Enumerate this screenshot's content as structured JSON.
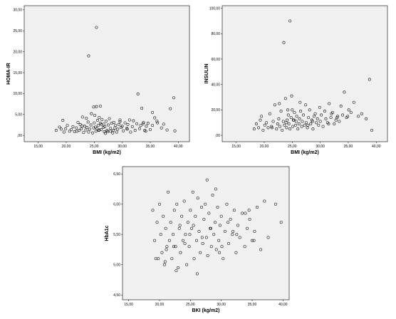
{
  "chart_data": [
    {
      "type": "scatter",
      "xlabel": "BMI (kg/m2)",
      "ylabel": "HOMA-IR",
      "xlim": [
        12.5,
        42
      ],
      "ylim": [
        -1.5,
        31
      ],
      "xticks": [
        "15,00",
        "20,00",
        "25,00",
        "30,00",
        "35,00",
        "40,00"
      ],
      "yticks": [
        ",00",
        "5,00",
        "10,00",
        "15,00",
        "20,00",
        "25,00",
        "30,00"
      ],
      "x": [
        18.2,
        18.8,
        19.1,
        19.4,
        19.6,
        19.9,
        20.2,
        20.6,
        20.9,
        21.2,
        21.5,
        21.8,
        22.1,
        22.3,
        22.5,
        22.7,
        22.9,
        23.1,
        23.3,
        23.5,
        23.7,
        23.9,
        24.0,
        24.2,
        24.4,
        24.5,
        24.7,
        24.9,
        25.0,
        25.1,
        25.2,
        25.3,
        25.4,
        25.5,
        25.6,
        25.7,
        25.8,
        25.9,
        26.1,
        26.2,
        26.4,
        26.6,
        26.7,
        26.8,
        26.9,
        27.1,
        27.3,
        27.4,
        27.5,
        27.7,
        27.9,
        28.1,
        28.4,
        28.5,
        28.7,
        28.8,
        29.0,
        29.2,
        29.4,
        29.6,
        29.8,
        30.0,
        30.2,
        30.5,
        30.8,
        31.0,
        31.3,
        31.5,
        31.8,
        32.0,
        32.3,
        32.6,
        32.8,
        33.1,
        33.3,
        33.5,
        33.8,
        34.0,
        34.3,
        34.6,
        35.0,
        35.4,
        35.8,
        36.3,
        37.0,
        37.4,
        38.0,
        38.6,
        39.2,
        39.4,
        24.0,
        25.4,
        26.1,
        27.0,
        27.9,
        30.9,
        33.7,
        34.2,
        22.8,
        36.2,
        23.6,
        24.9,
        25.9,
        26.3,
        28.3,
        21.9,
        29.6,
        35.4
      ],
      "y": [
        1.2,
        2.0,
        1.5,
        3.6,
        0.8,
        1.6,
        2.4,
        1.0,
        1.4,
        2.1,
        0.9,
        1.8,
        3.1,
        1.2,
        2.6,
        1.6,
        4.4,
        0.7,
        2.2,
        1.3,
        1.9,
        3.2,
        0.8,
        1.5,
        2.5,
        5.2,
        0.6,
        1.8,
        3.0,
        4.8,
        2.0,
        1.0,
        6.9,
        1.6,
        3.6,
        2.4,
        1.2,
        4.3,
        2.9,
        1.4,
        3.8,
        1.9,
        2.7,
        0.9,
        2.1,
        3.4,
        1.2,
        0.9,
        2.5,
        4.0,
        1.7,
        2.9,
        1.2,
        3.1,
        1.8,
        2.4,
        0.8,
        1.5,
        2.6,
        3.3,
        1.9,
        2.2,
        1.1,
        3.0,
        1.7,
        2.6,
        3.7,
        0.8,
        2.1,
        3.5,
        1.2,
        2.8,
        9.9,
        1.6,
        2.4,
        6.5,
        3.1,
        1.2,
        2.2,
        2.9,
        1.4,
        2.4,
        4.2,
        3.0,
        1.8,
        2.7,
        1.3,
        6.4,
        9.0,
        1.1,
        19.0,
        25.8,
        7.0,
        0.5,
        1.0,
        1.5,
        2.8,
        1.0,
        2.3,
        3.4,
        4.1,
        6.8,
        1.3,
        2.6,
        0.6,
        1.0,
        3.7,
        5.5
      ]
    },
    {
      "type": "scatter",
      "xlabel": "BMI (kg/m2)",
      "ylabel": "INSULIN",
      "xlim": [
        12.5,
        42
      ],
      "ylim": [
        -5,
        102
      ],
      "xticks": [
        "15,00",
        "20,00",
        "25,00",
        "30,00",
        "35,00",
        "40,00"
      ],
      "yticks": [
        ",00",
        "20,00",
        "40,00",
        "60,00",
        "80,00",
        "100,00"
      ],
      "x": [
        18.2,
        18.6,
        19.0,
        19.3,
        19.5,
        19.8,
        20.1,
        20.4,
        20.7,
        21.0,
        21.3,
        21.6,
        21.9,
        22.2,
        22.4,
        22.6,
        22.8,
        23.0,
        23.2,
        23.4,
        23.6,
        23.8,
        24.0,
        24.1,
        24.3,
        24.4,
        24.6,
        24.8,
        24.9,
        25.0,
        25.1,
        25.3,
        25.4,
        25.6,
        25.7,
        25.8,
        26.0,
        26.2,
        26.3,
        26.5,
        26.7,
        26.8,
        27.0,
        27.2,
        27.4,
        27.5,
        27.7,
        27.9,
        28.1,
        28.3,
        28.5,
        28.7,
        28.9,
        29.1,
        29.3,
        29.5,
        29.7,
        30.0,
        30.2,
        30.5,
        30.8,
        31.0,
        31.3,
        31.6,
        31.9,
        32.2,
        32.5,
        32.8,
        33.1,
        33.4,
        33.7,
        34.0,
        34.3,
        34.7,
        35.1,
        35.5,
        36.0,
        36.8,
        37.4,
        38.2,
        38.8,
        39.2,
        23.5,
        24.6,
        25.2,
        26.4,
        27.8,
        29.9,
        32.0,
        34.9,
        21.4,
        22.7,
        24.2,
        28.6,
        31.5,
        23.9,
        33.0
      ],
      "y": [
        5,
        9,
        6,
        12,
        15,
        4,
        8,
        10,
        6,
        17,
        7,
        11,
        24,
        5,
        9,
        13,
        7,
        19,
        4,
        11,
        8,
        29,
        6,
        12,
        16,
        9,
        5,
        14,
        31,
        20,
        7,
        12,
        18,
        8,
        11,
        15,
        5,
        9,
        13,
        19,
        7,
        11,
        16,
        8,
        24,
        10,
        6,
        14,
        20,
        9,
        12,
        5,
        15,
        17,
        10,
        13,
        8,
        11,
        16,
        7,
        19,
        13,
        10,
        25,
        14,
        18,
        9,
        12,
        15,
        11,
        23,
        16,
        34,
        14,
        20,
        18,
        26,
        15,
        17,
        13,
        44,
        4,
        73,
        90,
        12,
        26,
        8,
        22,
        17,
        15,
        6,
        25,
        20,
        11,
        9,
        10,
        14
      ]
    },
    {
      "type": "scatter",
      "xlabel": "BKI (kg/m2)",
      "ylabel": "HbA1c",
      "xlim": [
        14,
        41
      ],
      "ylim": [
        4.42,
        6.62
      ],
      "xticks": [
        "15,00",
        "20,00",
        "25,00",
        "30,00",
        "35,00",
        "40,00"
      ],
      "yticks": [
        "4,50",
        "5,00",
        "5,50",
        "6,00",
        "6,50"
      ],
      "x": [
        18.9,
        19.2,
        19.6,
        19.8,
        20.0,
        20.2,
        20.4,
        20.6,
        20.8,
        21.0,
        21.2,
        21.4,
        21.6,
        21.8,
        22.0,
        22.2,
        22.4,
        22.6,
        22.8,
        23.0,
        23.2,
        23.4,
        23.6,
        23.8,
        24.0,
        24.2,
        24.4,
        24.6,
        24.8,
        25.0,
        25.2,
        25.4,
        25.6,
        25.8,
        26.0,
        26.2,
        26.4,
        26.6,
        26.8,
        27.0,
        27.2,
        27.4,
        27.6,
        27.8,
        28.0,
        28.2,
        28.4,
        28.6,
        28.8,
        29.0,
        29.2,
        29.4,
        29.6,
        29.8,
        30.0,
        30.3,
        30.6,
        30.9,
        31.2,
        31.5,
        31.8,
        32.1,
        32.4,
        32.7,
        33.0,
        33.4,
        33.8,
        34.2,
        34.6,
        35.0,
        35.4,
        35.8,
        36.4,
        37.0,
        37.6,
        38.8,
        39.7,
        21.1,
        22.7,
        24.1,
        25.5,
        26.9,
        28.3,
        29.7,
        31.1,
        32.5,
        33.9,
        35.3,
        23.3,
        26.1,
        30.1,
        27.7,
        24.9,
        22.3,
        20.9,
        29.1,
        31.9,
        34.5,
        19.4
      ],
      "y": [
        5.9,
        5.4,
        5.7,
        5.1,
        6.0,
        5.5,
        5.2,
        5.8,
        5.0,
        5.6,
        5.3,
        6.2,
        5.4,
        5.7,
        5.1,
        5.5,
        5.9,
        5.3,
        6.0,
        4.95,
        5.6,
        5.2,
        5.8,
        5.4,
        6.05,
        5.5,
        5.0,
        5.7,
        5.3,
        5.9,
        5.6,
        6.2,
        5.1,
        5.8,
        5.4,
        6.1,
        5.55,
        5.2,
        5.95,
        5.35,
        5.75,
        6.0,
        5.45,
        5.15,
        5.85,
        5.6,
        5.3,
        6.15,
        5.5,
        5.7,
        5.25,
        5.95,
        5.4,
        5.65,
        5.8,
        5.1,
        5.55,
        6.0,
        5.35,
        5.75,
        5.5,
        5.9,
        5.2,
        5.65,
        5.45,
        5.85,
        5.3,
        5.6,
        5.75,
        5.4,
        5.55,
        5.95,
        5.25,
        6.05,
        5.45,
        6.0,
        5.7,
        5.25,
        4.9,
        5.35,
        5.65,
        5.45,
        5.6,
        5.2,
        5.7,
        5.5,
        5.85,
        5.4,
        5.65,
        4.85,
        5.3,
        6.4,
        5.5,
        5.3,
        5.05,
        6.25,
        5.55,
        5.9,
        5.1
      ]
    }
  ]
}
